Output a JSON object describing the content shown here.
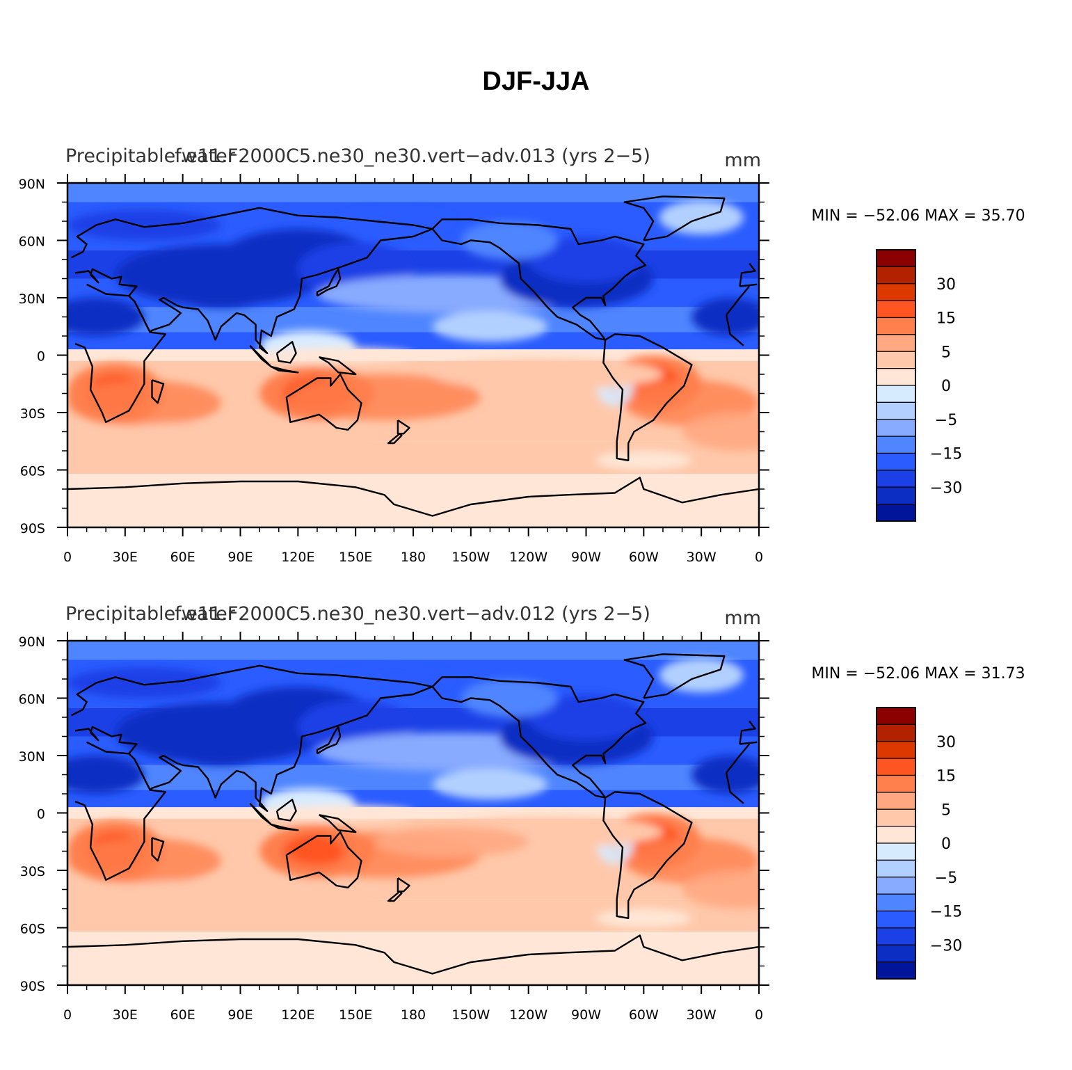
{
  "title": "DJF-JJA",
  "lon_ticks": [
    "0",
    "30E",
    "60E",
    "90E",
    "120E",
    "150E",
    "180",
    "150W",
    "120W",
    "90W",
    "60W",
    "30W",
    "0"
  ],
  "lat_ticks": [
    "90N",
    "60N",
    "30N",
    "0",
    "30S",
    "60S",
    "90S"
  ],
  "colorbar": {
    "colors": [
      "#8b0000",
      "#b22200",
      "#dd3800",
      "#ff5522",
      "#ff7f4d",
      "#ffa882",
      "#ffc8aa",
      "#ffe6d6",
      "#d7ebff",
      "#b2d0ff",
      "#88aaff",
      "#4f85ff",
      "#2a5cff",
      "#1b41e6",
      "#0c2ec3",
      "#00159a"
    ],
    "labels": [
      "30",
      "15",
      "5",
      "0",
      "−5",
      "−15",
      "−30"
    ]
  },
  "panels": [
    {
      "left_title": "Precipitable water",
      "center_title": "f.e11.F2000C5.ne30_ne30.vert−adv.013 (yrs 2−5)",
      "units": "mm",
      "stats": "MIN = −52.06  MAX =   35.70"
    },
    {
      "left_title": "Precipitable water",
      "center_title": "f.e11.F2000C5.ne30_ne30.vert−adv.012 (yrs 2−5)",
      "units": "mm",
      "stats": "MIN = −52.06  MAX =   31.73"
    }
  ]
}
